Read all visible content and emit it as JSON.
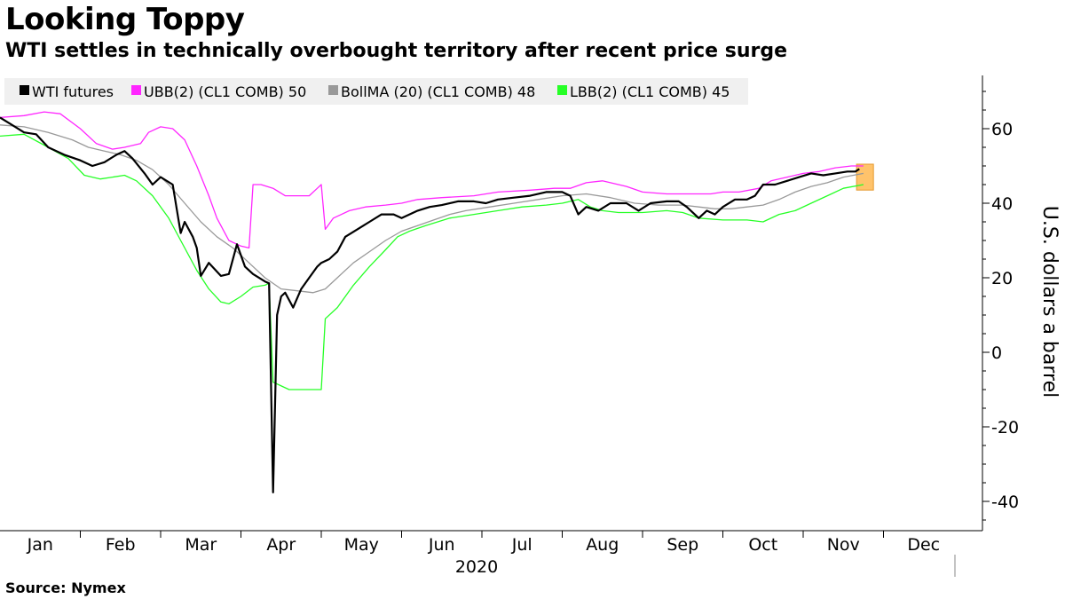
{
  "title": "Looking Toppy",
  "subtitle": "WTI settles in technically overbought territory after recent price surge",
  "source": "Source: Nymex",
  "chart_data": {
    "type": "line",
    "x_labels": [
      "Jan",
      "Feb",
      "Mar",
      "Apr",
      "May",
      "Jun",
      "Jul",
      "Aug",
      "Sep",
      "Oct",
      "Nov",
      "Dec"
    ],
    "year_label": "2020",
    "ylabel": "U.S. dollars a barrel",
    "ylim": [
      -48,
      75
    ],
    "yticks": [
      -40,
      -20,
      0,
      20,
      40,
      60
    ],
    "grid": false,
    "legend_position": "top-left",
    "series": [
      {
        "name": "WTI futures",
        "legend_label": "WTI futures",
        "color": "#000000",
        "points": [
          [
            0,
            63
          ],
          [
            0.15,
            61
          ],
          [
            0.3,
            59
          ],
          [
            0.45,
            58.5
          ],
          [
            0.6,
            55
          ],
          [
            0.8,
            53
          ],
          [
            1.0,
            51.5
          ],
          [
            1.15,
            50
          ],
          [
            1.3,
            51
          ],
          [
            1.45,
            53
          ],
          [
            1.55,
            54
          ],
          [
            1.65,
            52
          ],
          [
            1.8,
            48
          ],
          [
            1.9,
            45
          ],
          [
            2.0,
            47
          ],
          [
            2.15,
            45
          ],
          [
            2.25,
            32
          ],
          [
            2.3,
            35
          ],
          [
            2.4,
            31
          ],
          [
            2.45,
            28
          ],
          [
            2.5,
            20.5
          ],
          [
            2.6,
            24
          ],
          [
            2.75,
            20.5
          ],
          [
            2.85,
            21
          ],
          [
            2.95,
            29
          ],
          [
            3.05,
            23
          ],
          [
            3.15,
            21
          ],
          [
            3.3,
            19
          ],
          [
            3.35,
            18.5
          ],
          [
            3.4,
            -37.6
          ],
          [
            3.45,
            10
          ],
          [
            3.5,
            15
          ],
          [
            3.55,
            16
          ],
          [
            3.65,
            12
          ],
          [
            3.75,
            17
          ],
          [
            3.85,
            20
          ],
          [
            3.95,
            23
          ],
          [
            4.0,
            24
          ],
          [
            4.1,
            25
          ],
          [
            4.2,
            27
          ],
          [
            4.3,
            31
          ],
          [
            4.45,
            33
          ],
          [
            4.6,
            35
          ],
          [
            4.75,
            37
          ],
          [
            4.9,
            37
          ],
          [
            5.0,
            36
          ],
          [
            5.2,
            38
          ],
          [
            5.35,
            39
          ],
          [
            5.5,
            39.5
          ],
          [
            5.7,
            40.5
          ],
          [
            5.9,
            40.5
          ],
          [
            6.05,
            40
          ],
          [
            6.2,
            41
          ],
          [
            6.4,
            41.5
          ],
          [
            6.6,
            42
          ],
          [
            6.8,
            43
          ],
          [
            7.0,
            43
          ],
          [
            7.1,
            42
          ],
          [
            7.2,
            37
          ],
          [
            7.3,
            39
          ],
          [
            7.45,
            38
          ],
          [
            7.6,
            40
          ],
          [
            7.8,
            40
          ],
          [
            7.95,
            38
          ],
          [
            8.1,
            40
          ],
          [
            8.3,
            40.5
          ],
          [
            8.45,
            40.5
          ],
          [
            8.55,
            39
          ],
          [
            8.65,
            37
          ],
          [
            8.7,
            36
          ],
          [
            8.8,
            38
          ],
          [
            8.9,
            37
          ],
          [
            9.0,
            39
          ],
          [
            9.15,
            41
          ],
          [
            9.3,
            41
          ],
          [
            9.4,
            42
          ],
          [
            9.5,
            45
          ],
          [
            9.65,
            45
          ],
          [
            9.8,
            46
          ],
          [
            9.95,
            47
          ],
          [
            10.1,
            48
          ],
          [
            10.25,
            47.5
          ],
          [
            10.4,
            48
          ],
          [
            10.55,
            48.5
          ],
          [
            10.65,
            48.5
          ],
          [
            10.7,
            49.2
          ]
        ]
      },
      {
        "name": "UBB(2) (CL1 COMB)",
        "legend_label": "UBB(2) (CL1 COMB) 50",
        "color": "#ff26ff",
        "points": [
          [
            0,
            63
          ],
          [
            0.3,
            63.5
          ],
          [
            0.55,
            64.5
          ],
          [
            0.75,
            64
          ],
          [
            1.0,
            60
          ],
          [
            1.2,
            56
          ],
          [
            1.4,
            54.5
          ],
          [
            1.55,
            55
          ],
          [
            1.75,
            56
          ],
          [
            1.85,
            59
          ],
          [
            2.0,
            60.5
          ],
          [
            2.15,
            60
          ],
          [
            2.3,
            57
          ],
          [
            2.45,
            50
          ],
          [
            2.6,
            42
          ],
          [
            2.7,
            36
          ],
          [
            2.85,
            30
          ],
          [
            3.0,
            28.5
          ],
          [
            3.1,
            28
          ],
          [
            3.15,
            45
          ],
          [
            3.25,
            45
          ],
          [
            3.4,
            44
          ],
          [
            3.55,
            42
          ],
          [
            3.7,
            42
          ],
          [
            3.85,
            42
          ],
          [
            3.95,
            44
          ],
          [
            4.0,
            45
          ],
          [
            4.05,
            33
          ],
          [
            4.15,
            36
          ],
          [
            4.35,
            38
          ],
          [
            4.55,
            39
          ],
          [
            4.8,
            39.5
          ],
          [
            5.0,
            40
          ],
          [
            5.2,
            41
          ],
          [
            5.5,
            41.5
          ],
          [
            5.9,
            42
          ],
          [
            6.2,
            43
          ],
          [
            6.6,
            43.5
          ],
          [
            6.9,
            44
          ],
          [
            7.1,
            44
          ],
          [
            7.3,
            45.5
          ],
          [
            7.5,
            46
          ],
          [
            7.8,
            44.5
          ],
          [
            8.0,
            43
          ],
          [
            8.3,
            42.5
          ],
          [
            8.6,
            42.5
          ],
          [
            8.85,
            42.5
          ],
          [
            9.0,
            43
          ],
          [
            9.2,
            43
          ],
          [
            9.45,
            44
          ],
          [
            9.6,
            46
          ],
          [
            9.8,
            47
          ],
          [
            10.0,
            48
          ],
          [
            10.2,
            48.5
          ],
          [
            10.4,
            49.5
          ],
          [
            10.6,
            50
          ],
          [
            10.75,
            50
          ]
        ]
      },
      {
        "name": "BollMA (20) (CL1 COMB)",
        "legend_label": "BollMA (20) (CL1 COMB) 48",
        "color": "#999999",
        "points": [
          [
            0,
            61
          ],
          [
            0.3,
            60.5
          ],
          [
            0.6,
            59
          ],
          [
            0.9,
            57
          ],
          [
            1.1,
            55
          ],
          [
            1.3,
            54
          ],
          [
            1.5,
            53
          ],
          [
            1.7,
            51.5
          ],
          [
            1.9,
            49
          ],
          [
            2.1,
            45
          ],
          [
            2.3,
            40
          ],
          [
            2.5,
            35
          ],
          [
            2.7,
            31
          ],
          [
            2.9,
            28
          ],
          [
            3.1,
            24
          ],
          [
            3.3,
            20
          ],
          [
            3.5,
            17
          ],
          [
            3.7,
            16.5
          ],
          [
            3.9,
            16
          ],
          [
            4.05,
            17
          ],
          [
            4.2,
            20
          ],
          [
            4.4,
            24
          ],
          [
            4.6,
            27
          ],
          [
            4.8,
            30
          ],
          [
            5.0,
            32.5
          ],
          [
            5.2,
            34
          ],
          [
            5.4,
            35.5
          ],
          [
            5.6,
            37
          ],
          [
            5.8,
            38
          ],
          [
            6.1,
            39
          ],
          [
            6.4,
            40
          ],
          [
            6.7,
            41
          ],
          [
            7.0,
            42
          ],
          [
            7.3,
            42.5
          ],
          [
            7.6,
            41.5
          ],
          [
            7.9,
            40
          ],
          [
            8.2,
            39.5
          ],
          [
            8.5,
            39.5
          ],
          [
            8.7,
            39
          ],
          [
            8.9,
            38.5
          ],
          [
            9.1,
            38.5
          ],
          [
            9.3,
            39
          ],
          [
            9.5,
            39.5
          ],
          [
            9.7,
            41
          ],
          [
            9.9,
            43
          ],
          [
            10.1,
            44.5
          ],
          [
            10.3,
            45.5
          ],
          [
            10.5,
            47
          ],
          [
            10.75,
            48
          ]
        ]
      },
      {
        "name": "LBB(2) (CL1 COMB)",
        "legend_label": "LBB(2) (CL1 COMB) 45",
        "color": "#26ff26",
        "points": [
          [
            0,
            58
          ],
          [
            0.3,
            58.5
          ],
          [
            0.6,
            55
          ],
          [
            0.85,
            52
          ],
          [
            1.05,
            47.5
          ],
          [
            1.25,
            46.5
          ],
          [
            1.4,
            47
          ],
          [
            1.55,
            47.5
          ],
          [
            1.7,
            46
          ],
          [
            1.9,
            42
          ],
          [
            2.1,
            36
          ],
          [
            2.25,
            30
          ],
          [
            2.45,
            22
          ],
          [
            2.6,
            17
          ],
          [
            2.75,
            13.5
          ],
          [
            2.85,
            13
          ],
          [
            3.0,
            15
          ],
          [
            3.15,
            17.5
          ],
          [
            3.3,
            18
          ],
          [
            3.35,
            18.5
          ],
          [
            3.4,
            -8
          ],
          [
            3.6,
            -10
          ],
          [
            3.8,
            -10
          ],
          [
            4.0,
            -10
          ],
          [
            4.05,
            9
          ],
          [
            4.2,
            12
          ],
          [
            4.4,
            18
          ],
          [
            4.6,
            23
          ],
          [
            4.8,
            27.5
          ],
          [
            4.95,
            31
          ],
          [
            5.1,
            32.5
          ],
          [
            5.3,
            34
          ],
          [
            5.6,
            36
          ],
          [
            5.9,
            37
          ],
          [
            6.2,
            38
          ],
          [
            6.5,
            39
          ],
          [
            6.8,
            39.5
          ],
          [
            7.0,
            40
          ],
          [
            7.2,
            41
          ],
          [
            7.35,
            39
          ],
          [
            7.5,
            38
          ],
          [
            7.7,
            37.5
          ],
          [
            8.0,
            37.5
          ],
          [
            8.3,
            38
          ],
          [
            8.5,
            37.5
          ],
          [
            8.7,
            36
          ],
          [
            9.0,
            35.5
          ],
          [
            9.3,
            35.5
          ],
          [
            9.5,
            35
          ],
          [
            9.7,
            37
          ],
          [
            9.9,
            38
          ],
          [
            10.1,
            40
          ],
          [
            10.3,
            42
          ],
          [
            10.5,
            44
          ],
          [
            10.75,
            45
          ]
        ]
      }
    ],
    "last_value_marker": {
      "x": 10.72,
      "ymin": 44,
      "ymax": 50,
      "color": "#ffc36b"
    }
  }
}
